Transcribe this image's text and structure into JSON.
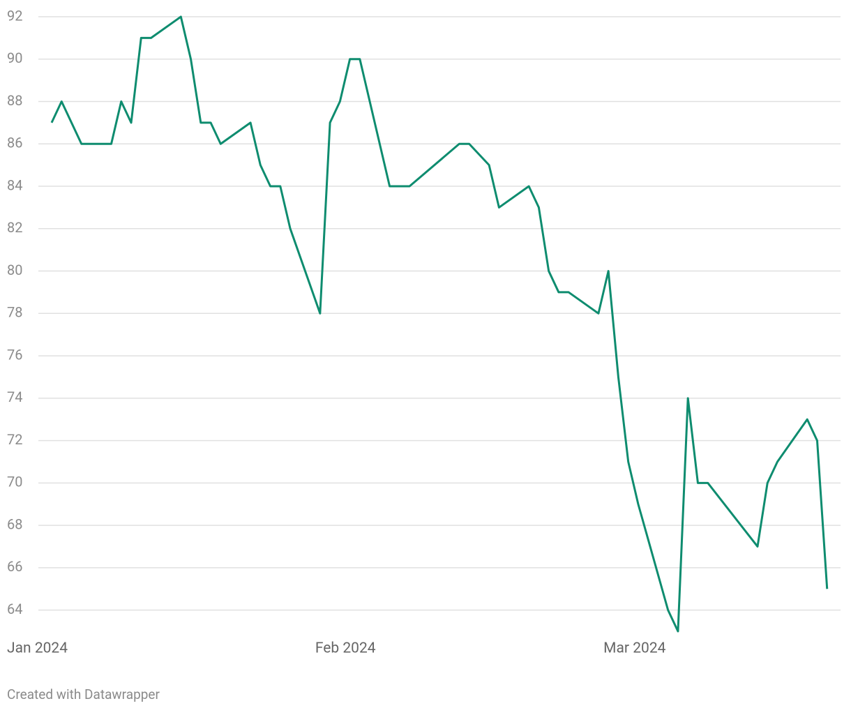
{
  "chart_data": {
    "type": "line",
    "x": [
      4,
      5,
      7,
      10,
      11,
      12,
      13,
      14,
      17,
      18,
      19,
      20,
      21,
      24,
      25,
      26,
      27,
      28,
      31,
      32,
      33,
      34,
      35,
      38,
      39,
      40,
      45,
      46,
      48,
      49,
      52,
      53,
      54,
      55,
      56,
      59,
      60,
      61,
      62,
      63,
      66,
      67,
      68,
      69,
      70,
      75,
      76,
      77,
      80,
      81,
      82
    ],
    "series": [
      {
        "color": "#0e8c6f",
        "values": [
          87,
          88,
          86,
          86,
          88,
          87,
          91,
          91,
          92,
          90,
          87,
          87,
          86,
          87,
          85,
          84,
          84,
          82,
          78,
          87,
          88,
          90,
          90,
          84,
          84,
          84,
          86,
          86,
          85,
          83,
          84,
          83,
          80,
          79,
          79,
          78,
          80,
          75,
          71,
          69,
          64,
          63,
          74,
          70,
          70,
          67,
          70,
          71,
          73,
          72,
          65
        ]
      }
    ],
    "xlim": [
      0,
      83
    ],
    "xticks": [
      {
        "value": 0,
        "label": "Jan 2024"
      },
      {
        "value": 31,
        "label": "Feb 2024"
      },
      {
        "value": 60,
        "label": "Mar 2024"
      }
    ],
    "ylim": [
      63,
      92
    ],
    "yticks": [
      64,
      66,
      68,
      70,
      72,
      74,
      76,
      78,
      80,
      82,
      84,
      86,
      88,
      90,
      92
    ],
    "grid": true,
    "footer": "Created with Datawrapper"
  }
}
